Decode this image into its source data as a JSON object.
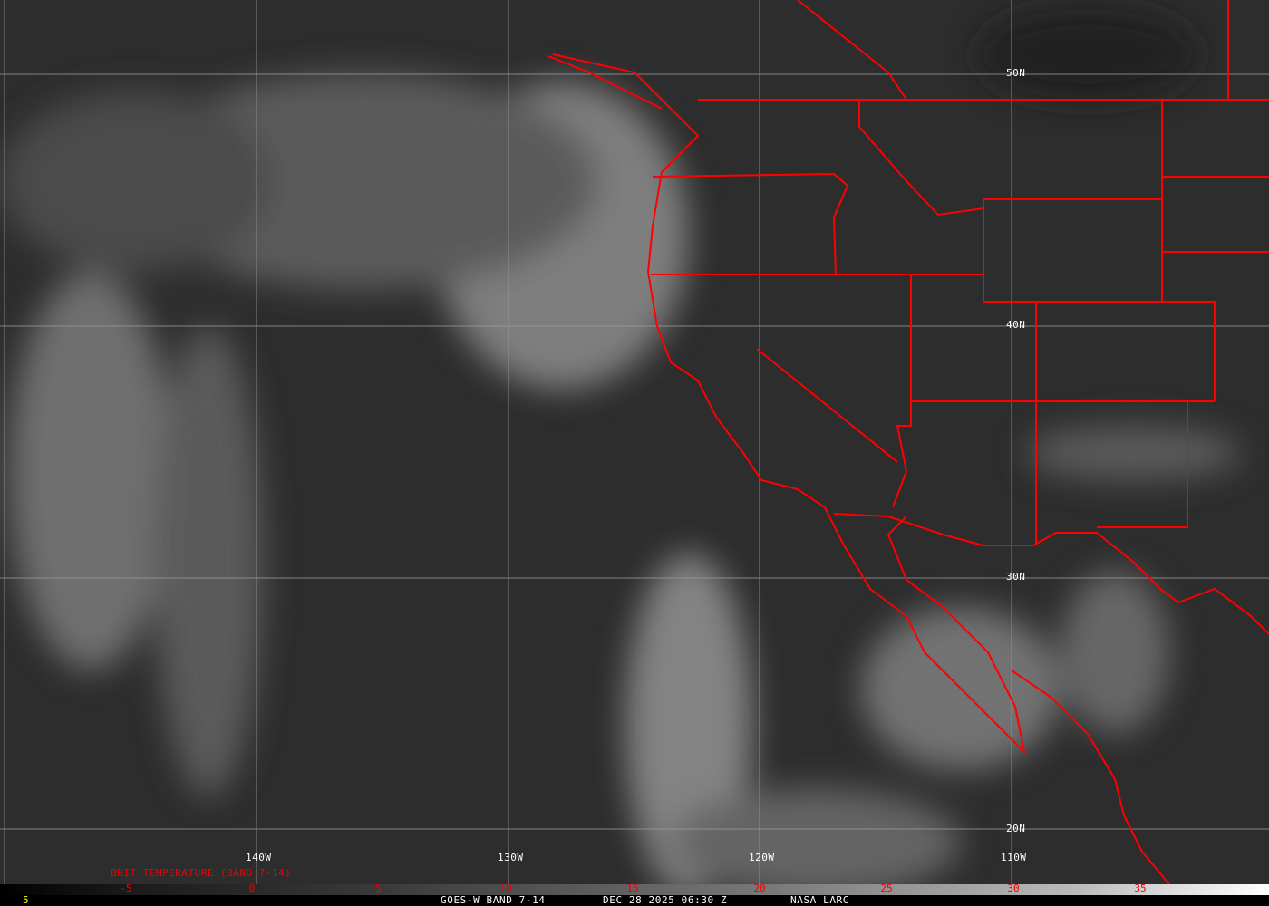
{
  "map": {
    "longitude_labels": [
      "140W",
      "130W",
      "120W",
      "110W"
    ],
    "latitude_labels": [
      "50N",
      "40N",
      "30N",
      "20N"
    ],
    "border_color": "#ff0000",
    "grid_color": "#9a9a9a"
  },
  "legend": {
    "title": "BRIT TEMPERATURE (BAND 7-14)",
    "ticks": [
      "-5",
      "0",
      "5",
      "10",
      "15",
      "20",
      "25",
      "30",
      "35"
    ],
    "corner_value": "5"
  },
  "footer": {
    "satellite": "GOES-W BAND 7-14",
    "datetime": "DEC 28 2025 06:30 Z",
    "source": "NASA LARC"
  }
}
